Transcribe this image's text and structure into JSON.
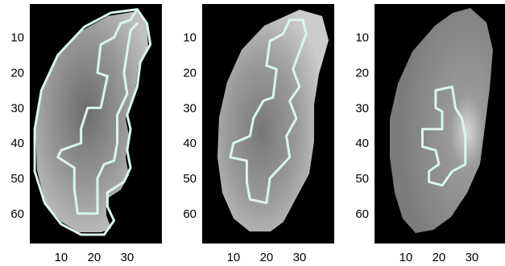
{
  "figure": {
    "background_color": "#ffffff",
    "panel_background": "#000000",
    "contour_color": "#d8f6ee"
  },
  "chart_data": [
    {
      "type": "heatmap",
      "title": "",
      "xlabel": "",
      "ylabel": "",
      "xlim": [
        0.5,
        40.5
      ],
      "ylim": [
        68.5,
        0.5
      ],
      "x_tick_values": [
        10,
        20,
        30
      ],
      "x_tick_labels": [
        "10",
        "20",
        "30"
      ],
      "y_tick_values": [
        10,
        20,
        30,
        40,
        50,
        60
      ],
      "y_tick_labels": [
        "10",
        "20",
        "30",
        "40",
        "50",
        "60"
      ],
      "grid": false,
      "colormap": "gray",
      "content": "grayscale kidney slice with cortical segmentation contour",
      "contour": [
        [
          33,
          2
        ],
        [
          36,
          6
        ],
        [
          37,
          12
        ],
        [
          34,
          17
        ],
        [
          33,
          24
        ],
        [
          30,
          32
        ],
        [
          31,
          36
        ],
        [
          30,
          42
        ],
        [
          31,
          47
        ],
        [
          29,
          51
        ],
        [
          24,
          54
        ],
        [
          24,
          58
        ],
        [
          26,
          62
        ],
        [
          23,
          66
        ],
        [
          16,
          66
        ],
        [
          10,
          63
        ],
        [
          5,
          57
        ],
        [
          2,
          48
        ],
        [
          2,
          36
        ],
        [
          4,
          25
        ],
        [
          9,
          15
        ],
        [
          17,
          7
        ],
        [
          25,
          3
        ],
        [
          33,
          2
        ],
        [
          31,
          5
        ],
        [
          28,
          6
        ],
        [
          26,
          10
        ],
        [
          22,
          12
        ],
        [
          21,
          20
        ],
        [
          24,
          21
        ],
        [
          22,
          30
        ],
        [
          18,
          30
        ],
        [
          16,
          36
        ],
        [
          16,
          40
        ],
        [
          10,
          42
        ],
        [
          9,
          44
        ],
        [
          14,
          47
        ],
        [
          14,
          53
        ],
        [
          15,
          60
        ],
        [
          21,
          60
        ],
        [
          21,
          50
        ],
        [
          23,
          46
        ],
        [
          26,
          45
        ],
        [
          27,
          40
        ],
        [
          27,
          32
        ],
        [
          30,
          26
        ],
        [
          29,
          20
        ],
        [
          30,
          14
        ],
        [
          31,
          8
        ],
        [
          33,
          6
        ]
      ]
    },
    {
      "type": "heatmap",
      "title": "",
      "xlabel": "",
      "ylabel": "",
      "xlim": [
        0.5,
        40.5
      ],
      "ylim": [
        68.5,
        0.5
      ],
      "x_tick_values": [
        10,
        20,
        30
      ],
      "x_tick_labels": [
        "10",
        "20",
        "30"
      ],
      "y_tick_values": [
        10,
        20,
        30,
        40,
        50,
        60
      ],
      "y_tick_labels": [
        "10",
        "20",
        "30",
        "40",
        "50",
        "60"
      ],
      "grid": false,
      "colormap": "gray",
      "content": "grayscale kidney slice with medullary segmentation contour",
      "contour": [
        [
          31,
          5
        ],
        [
          27,
          5
        ],
        [
          25,
          9
        ],
        [
          21,
          11
        ],
        [
          20,
          18
        ],
        [
          23,
          19
        ],
        [
          22,
          27
        ],
        [
          19,
          28
        ],
        [
          16,
          33
        ],
        [
          15,
          38
        ],
        [
          10,
          40
        ],
        [
          9,
          44
        ],
        [
          14,
          45
        ],
        [
          14,
          51
        ],
        [
          15,
          56
        ],
        [
          20,
          57
        ],
        [
          21,
          50
        ],
        [
          24,
          47
        ],
        [
          27,
          44
        ],
        [
          26,
          38
        ],
        [
          29,
          33
        ],
        [
          27,
          28
        ],
        [
          30,
          24
        ],
        [
          28,
          19
        ],
        [
          30,
          14
        ],
        [
          32,
          9
        ],
        [
          31,
          5
        ]
      ]
    },
    {
      "type": "heatmap",
      "title": "",
      "xlabel": "",
      "ylabel": "",
      "xlim": [
        0.5,
        40.5
      ],
      "ylim": [
        68.5,
        0.5
      ],
      "x_tick_values": [
        10,
        20,
        30
      ],
      "x_tick_labels": [
        "10",
        "20",
        "30"
      ],
      "y_tick_values": [
        10,
        20,
        30,
        40,
        50,
        60
      ],
      "y_tick_labels": [
        "10",
        "20",
        "30",
        "40",
        "50",
        "60"
      ],
      "grid": false,
      "colormap": "gray",
      "content": "grayscale kidney slice with pelvis segmentation contour",
      "contour": [
        [
          19,
          25
        ],
        [
          19,
          30
        ],
        [
          21,
          31
        ],
        [
          21,
          36
        ],
        [
          15,
          36
        ],
        [
          15,
          41
        ],
        [
          19,
          42
        ],
        [
          20,
          46
        ],
        [
          17,
          48
        ],
        [
          17,
          51
        ],
        [
          21,
          52
        ],
        [
          24,
          48
        ],
        [
          28,
          46
        ],
        [
          28,
          38
        ],
        [
          27,
          33
        ],
        [
          25,
          30
        ],
        [
          24,
          24
        ],
        [
          19,
          25
        ]
      ]
    }
  ]
}
